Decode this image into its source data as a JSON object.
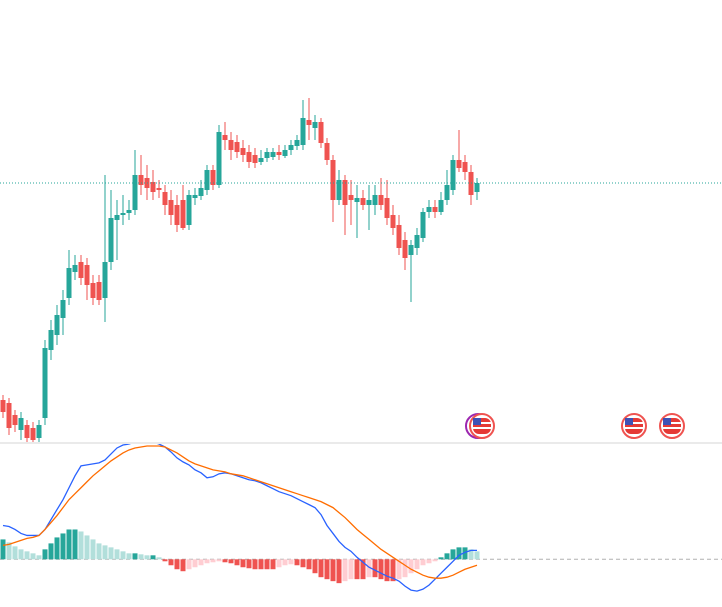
{
  "chart_data": [
    {
      "type": "candlestick",
      "up_color": "#26a69a",
      "down_color": "#ef5350",
      "ylim": [
        0,
        442
      ],
      "open": [
        42,
        39,
        27,
        12,
        17,
        14,
        4,
        24,
        92,
        107,
        124,
        144,
        170,
        180,
        177,
        159,
        160,
        144,
        180,
        222,
        227,
        229,
        232,
        267,
        264,
        260,
        254,
        250,
        242,
        237,
        242,
        217,
        244,
        246,
        252,
        272,
        257,
        307,
        302,
        300,
        294,
        290,
        287,
        280,
        284,
        285,
        290,
        286,
        292,
        296,
        297,
        322,
        314,
        320,
        299,
        282,
        242,
        262,
        247,
        240,
        244,
        237,
        237,
        247,
        244,
        227,
        217,
        202,
        187,
        194,
        204,
        230,
        235,
        230,
        242,
        252,
        282,
        280,
        270,
        250
      ],
      "high": [
        47,
        44,
        32,
        30,
        22,
        20,
        22,
        102,
        122,
        137,
        152,
        192,
        187,
        187,
        184,
        167,
        167,
        267,
        252,
        242,
        247,
        242,
        292,
        287,
        277,
        272,
        262,
        257,
        252,
        247,
        257,
        252,
        254,
        262,
        277,
        277,
        317,
        320,
        310,
        307,
        302,
        297,
        294,
        292,
        294,
        294,
        297,
        297,
        302,
        307,
        342,
        344,
        327,
        324,
        304,
        287,
        272,
        267,
        262,
        257,
        252,
        257,
        257,
        264,
        262,
        237,
        227,
        210,
        202,
        214,
        234,
        242,
        242,
        250,
        272,
        287,
        312,
        287,
        277,
        264
      ],
      "low": [
        24,
        7,
        10,
        2,
        0,
        0,
        0,
        17,
        82,
        97,
        107,
        137,
        162,
        157,
        142,
        137,
        137,
        120,
        172,
        182,
        217,
        222,
        227,
        247,
        242,
        242,
        244,
        227,
        217,
        210,
        212,
        212,
        237,
        242,
        247,
        252,
        254,
        292,
        282,
        284,
        280,
        274,
        274,
        277,
        280,
        282,
        282,
        284,
        287,
        292,
        292,
        302,
        302,
        294,
        277,
        220,
        237,
        207,
        217,
        204,
        232,
        212,
        227,
        232,
        217,
        207,
        187,
        172,
        140,
        187,
        200,
        224,
        224,
        227,
        237,
        247,
        270,
        262,
        237,
        242
      ],
      "close": [
        30,
        14,
        17,
        24,
        4,
        2,
        17,
        94,
        112,
        127,
        142,
        174,
        177,
        164,
        157,
        144,
        142,
        180,
        224,
        227,
        229,
        232,
        267,
        257,
        254,
        250,
        252,
        237,
        227,
        217,
        214,
        247,
        247,
        254,
        272,
        257,
        310,
        302,
        292,
        290,
        287,
        280,
        279,
        284,
        290,
        290,
        287,
        292,
        297,
        302,
        324,
        317,
        320,
        299,
        282,
        242,
        262,
        237,
        242,
        244,
        237,
        242,
        247,
        237,
        224,
        214,
        194,
        184,
        197,
        207,
        230,
        235,
        230,
        242,
        257,
        282,
        274,
        270,
        247,
        259
      ]
    },
    {
      "type": "macd",
      "ylim": [
        -48,
        116
      ],
      "histogram": {
        "up_color": "#26a69a",
        "up_fade": "#b2dfdb",
        "down_color": "#ef5350",
        "down_fade": "#ffcdd2",
        "values": [
          20,
          17,
          13,
          10,
          8,
          6,
          4,
          10,
          16,
          22,
          26,
          30,
          30,
          28,
          24,
          20,
          16,
          14,
          12,
          10,
          8,
          6,
          6,
          5,
          4,
          4,
          2,
          -2,
          -6,
          -10,
          -12,
          -10,
          -8,
          -6,
          -4,
          -3,
          -2,
          -3,
          -4,
          -6,
          -8,
          -9,
          -10,
          -10,
          -10,
          -10,
          -8,
          -6,
          -5,
          -6,
          -8,
          -10,
          -14,
          -18,
          -20,
          -22,
          -24,
          -22,
          -20,
          -20,
          -20,
          -18,
          -18,
          -20,
          -22,
          -22,
          -20,
          -18,
          -14,
          -10,
          -6,
          -4,
          -2,
          2,
          6,
          10,
          12,
          12,
          10,
          8
        ]
      },
      "series": [
        {
          "color": "#2962ff",
          "values": [
            34,
            33,
            30,
            26,
            24,
            24,
            24,
            30,
            40,
            50,
            60,
            72,
            84,
            94,
            95,
            96,
            97,
            100,
            106,
            112,
            115,
            116,
            118,
            118,
            118,
            118,
            116,
            113,
            108,
            102,
            98,
            95,
            90,
            87,
            82,
            83,
            86,
            87,
            86,
            84,
            82,
            80,
            79,
            77,
            74,
            71,
            68,
            66,
            64,
            61,
            58,
            55,
            52,
            45,
            34,
            26,
            18,
            12,
            8,
            2,
            -3,
            -8,
            -11,
            -14,
            -17,
            -19,
            -22,
            -27,
            -31,
            -32,
            -30,
            -26,
            -20,
            -14,
            -8,
            -2,
            4,
            7,
            9,
            9
          ]
        },
        {
          "color": "#ff6d00",
          "values": [
            14,
            15,
            17,
            19,
            21,
            22,
            24,
            30,
            37,
            44,
            52,
            60,
            66,
            72,
            78,
            84,
            89,
            94,
            99,
            103,
            107,
            110,
            112,
            113,
            114,
            114,
            114,
            113,
            110,
            107,
            103,
            99,
            96,
            94,
            92,
            90,
            89,
            88,
            86,
            85,
            84,
            82,
            80,
            78,
            76,
            74,
            72,
            70,
            68,
            66,
            64,
            62,
            60,
            58,
            55,
            52,
            47,
            42,
            36,
            30,
            25,
            20,
            15,
            10,
            6,
            2,
            -2,
            -6,
            -10,
            -13,
            -16,
            -18,
            -19,
            -19,
            -18,
            -16,
            -13,
            -10,
            -8,
            -6
          ]
        }
      ]
    }
  ]
}
